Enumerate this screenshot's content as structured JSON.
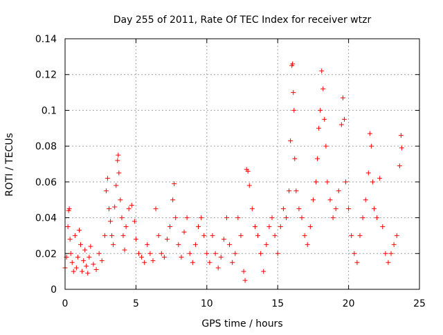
{
  "chart_data": {
    "type": "scatter",
    "title": "Day 255 of 2011, Rate Of TEC Index for receiver wtzr",
    "xlabel": "GPS time / hours",
    "ylabel": "ROTI / TECUs",
    "xlim": [
      0,
      25
    ],
    "ylim": [
      0,
      0.14
    ],
    "xticks": [
      0,
      5,
      10,
      15,
      20,
      25
    ],
    "yticks": [
      0,
      0.02,
      0.04,
      0.06,
      0.08,
      0.1,
      0.12,
      0.14
    ],
    "xtick_labels": [
      "0",
      "5",
      "10",
      "15",
      "20",
      "25"
    ],
    "ytick_labels": [
      "0",
      "0.02",
      "0.04",
      "0.06",
      "0.08",
      "0.1",
      "0.12",
      "0.14"
    ],
    "grid": true,
    "marker": "plus",
    "series_color": "#ff0000",
    "series": [
      {
        "points": [
          [
            0.0,
            0.012
          ],
          [
            0.1,
            0.018
          ],
          [
            0.2,
            0.035
          ],
          [
            0.25,
            0.044
          ],
          [
            0.3,
            0.045
          ],
          [
            0.35,
            0.028
          ],
          [
            0.4,
            0.02
          ],
          [
            0.5,
            0.015
          ],
          [
            0.6,
            0.01
          ],
          [
            0.7,
            0.03
          ],
          [
            0.8,
            0.012
          ],
          [
            0.9,
            0.018
          ],
          [
            1.0,
            0.033
          ],
          [
            1.1,
            0.025
          ],
          [
            1.2,
            0.01
          ],
          [
            1.3,
            0.016
          ],
          [
            1.4,
            0.022
          ],
          [
            1.5,
            0.013
          ],
          [
            1.6,
            0.009
          ],
          [
            1.7,
            0.018
          ],
          [
            1.8,
            0.024
          ],
          [
            2.0,
            0.014
          ],
          [
            2.2,
            0.011
          ],
          [
            2.4,
            0.02
          ],
          [
            2.6,
            0.016
          ],
          [
            2.8,
            0.03
          ],
          [
            2.9,
            0.055
          ],
          [
            3.0,
            0.062
          ],
          [
            3.1,
            0.045
          ],
          [
            3.2,
            0.038
          ],
          [
            3.3,
            0.03
          ],
          [
            3.4,
            0.025
          ],
          [
            3.5,
            0.046
          ],
          [
            3.6,
            0.058
          ],
          [
            3.7,
            0.072
          ],
          [
            3.75,
            0.075
          ],
          [
            3.8,
            0.065
          ],
          [
            3.9,
            0.05
          ],
          [
            4.0,
            0.04
          ],
          [
            4.1,
            0.03
          ],
          [
            4.2,
            0.022
          ],
          [
            4.3,
            0.035
          ],
          [
            4.5,
            0.045
          ],
          [
            4.7,
            0.047
          ],
          [
            4.9,
            0.038
          ],
          [
            5.0,
            0.028
          ],
          [
            5.2,
            0.02
          ],
          [
            5.4,
            0.018
          ],
          [
            5.6,
            0.015
          ],
          [
            5.8,
            0.025
          ],
          [
            6.0,
            0.02
          ],
          [
            6.2,
            0.016
          ],
          [
            6.4,
            0.045
          ],
          [
            6.6,
            0.03
          ],
          [
            6.8,
            0.02
          ],
          [
            7.0,
            0.018
          ],
          [
            7.2,
            0.028
          ],
          [
            7.4,
            0.035
          ],
          [
            7.6,
            0.05
          ],
          [
            7.7,
            0.059
          ],
          [
            7.8,
            0.04
          ],
          [
            8.0,
            0.025
          ],
          [
            8.2,
            0.018
          ],
          [
            8.4,
            0.032
          ],
          [
            8.6,
            0.04
          ],
          [
            8.8,
            0.02
          ],
          [
            9.0,
            0.015
          ],
          [
            9.2,
            0.025
          ],
          [
            9.4,
            0.035
          ],
          [
            9.6,
            0.04
          ],
          [
            9.8,
            0.03
          ],
          [
            10.0,
            0.02
          ],
          [
            10.2,
            0.015
          ],
          [
            10.4,
            0.03
          ],
          [
            10.6,
            0.02
          ],
          [
            10.8,
            0.012
          ],
          [
            11.0,
            0.018
          ],
          [
            11.2,
            0.028
          ],
          [
            11.4,
            0.04
          ],
          [
            11.6,
            0.025
          ],
          [
            11.8,
            0.015
          ],
          [
            12.0,
            0.02
          ],
          [
            12.2,
            0.04
          ],
          [
            12.4,
            0.03
          ],
          [
            12.6,
            0.01
          ],
          [
            12.7,
            0.005
          ],
          [
            12.8,
            0.067
          ],
          [
            12.9,
            0.066
          ],
          [
            13.0,
            0.058
          ],
          [
            13.2,
            0.045
          ],
          [
            13.4,
            0.035
          ],
          [
            13.6,
            0.03
          ],
          [
            13.8,
            0.02
          ],
          [
            14.0,
            0.01
          ],
          [
            14.2,
            0.025
          ],
          [
            14.4,
            0.035
          ],
          [
            14.6,
            0.04
          ],
          [
            14.8,
            0.03
          ],
          [
            15.0,
            0.02
          ],
          [
            15.2,
            0.035
          ],
          [
            15.4,
            0.045
          ],
          [
            15.6,
            0.04
          ],
          [
            15.8,
            0.055
          ],
          [
            15.9,
            0.083
          ],
          [
            16.0,
            0.125
          ],
          [
            16.05,
            0.126
          ],
          [
            16.1,
            0.11
          ],
          [
            16.15,
            0.1
          ],
          [
            16.2,
            0.073
          ],
          [
            16.3,
            0.055
          ],
          [
            16.5,
            0.045
          ],
          [
            16.7,
            0.04
          ],
          [
            16.9,
            0.03
          ],
          [
            17.1,
            0.025
          ],
          [
            17.3,
            0.035
          ],
          [
            17.5,
            0.05
          ],
          [
            17.7,
            0.06
          ],
          [
            17.8,
            0.073
          ],
          [
            17.9,
            0.09
          ],
          [
            18.0,
            0.1
          ],
          [
            18.1,
            0.122
          ],
          [
            18.2,
            0.112
          ],
          [
            18.3,
            0.095
          ],
          [
            18.4,
            0.08
          ],
          [
            18.5,
            0.06
          ],
          [
            18.7,
            0.05
          ],
          [
            18.9,
            0.04
          ],
          [
            19.1,
            0.045
          ],
          [
            19.3,
            0.055
          ],
          [
            19.5,
            0.092
          ],
          [
            19.6,
            0.107
          ],
          [
            19.7,
            0.095
          ],
          [
            19.8,
            0.06
          ],
          [
            20.0,
            0.045
          ],
          [
            20.2,
            0.03
          ],
          [
            20.4,
            0.02
          ],
          [
            20.6,
            0.015
          ],
          [
            20.8,
            0.03
          ],
          [
            21.0,
            0.04
          ],
          [
            21.2,
            0.05
          ],
          [
            21.4,
            0.065
          ],
          [
            21.5,
            0.087
          ],
          [
            21.6,
            0.08
          ],
          [
            21.7,
            0.06
          ],
          [
            21.8,
            0.045
          ],
          [
            22.0,
            0.04
          ],
          [
            22.2,
            0.062
          ],
          [
            22.4,
            0.035
          ],
          [
            22.6,
            0.02
          ],
          [
            22.8,
            0.015
          ],
          [
            23.0,
            0.02
          ],
          [
            23.2,
            0.025
          ],
          [
            23.4,
            0.03
          ],
          [
            23.6,
            0.069
          ],
          [
            23.7,
            0.086
          ],
          [
            23.75,
            0.079
          ]
        ]
      }
    ]
  }
}
